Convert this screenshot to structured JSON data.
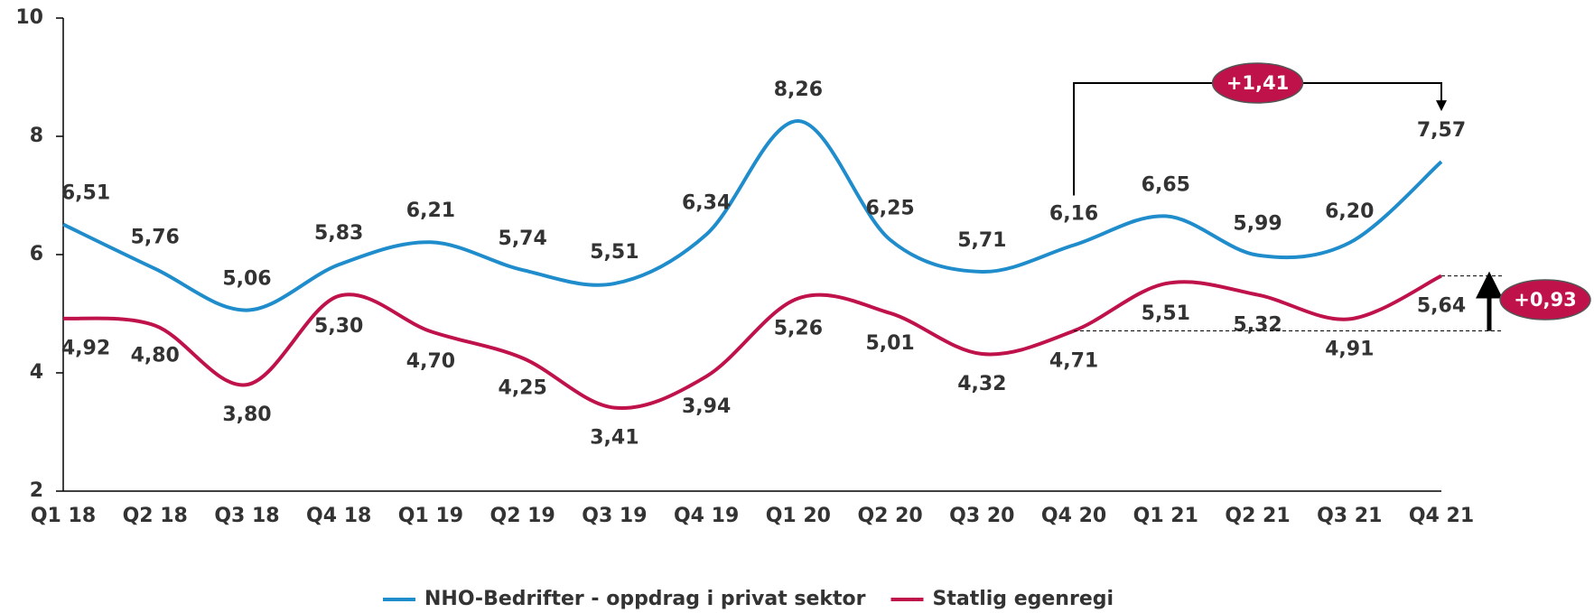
{
  "chart_data": {
    "type": "line",
    "categories": [
      "Q1 18",
      "Q2 18",
      "Q3 18",
      "Q4 18",
      "Q1 19",
      "Q2 19",
      "Q3 19",
      "Q4 19",
      "Q1 20",
      "Q2 20",
      "Q3 20",
      "Q4 20",
      "Q1 21",
      "Q2 21",
      "Q3 21",
      "Q4 21"
    ],
    "series": [
      {
        "name": "NHO-Bedrifter - oppdrag i privat sektor",
        "color": "#1f8ccc",
        "values": [
          6.51,
          5.76,
          5.06,
          5.83,
          6.21,
          5.74,
          5.51,
          6.34,
          8.26,
          6.25,
          5.71,
          6.16,
          6.65,
          5.99,
          6.2,
          7.57
        ],
        "value_labels": [
          "6,51",
          "5,76",
          "5,06",
          "5,83",
          "6,21",
          "5,74",
          "5,51",
          "6,34",
          "8,26",
          "6,25",
          "5,71",
          "6,16",
          "6,65",
          "5,99",
          "6,20",
          "7,57"
        ]
      },
      {
        "name": "Statlig egenregi",
        "color": "#c0124a",
        "values": [
          4.92,
          4.8,
          3.8,
          5.3,
          4.7,
          4.25,
          3.41,
          3.94,
          5.26,
          5.01,
          4.32,
          4.71,
          5.51,
          5.32,
          4.91,
          5.64
        ],
        "value_labels": [
          "4,92",
          "4,80",
          "3,80",
          "5,30",
          "4,70",
          "4,25",
          "3,41",
          "3,94",
          "5,26",
          "5,01",
          "4,32",
          "4,71",
          "5,51",
          "5,32",
          "4,91",
          "5,64"
        ]
      }
    ],
    "ylim": [
      2,
      10
    ],
    "yticks": [
      2,
      4,
      6,
      8,
      10
    ],
    "annotations": [
      "+1,41",
      "+0,93"
    ],
    "legend": "bottom"
  }
}
